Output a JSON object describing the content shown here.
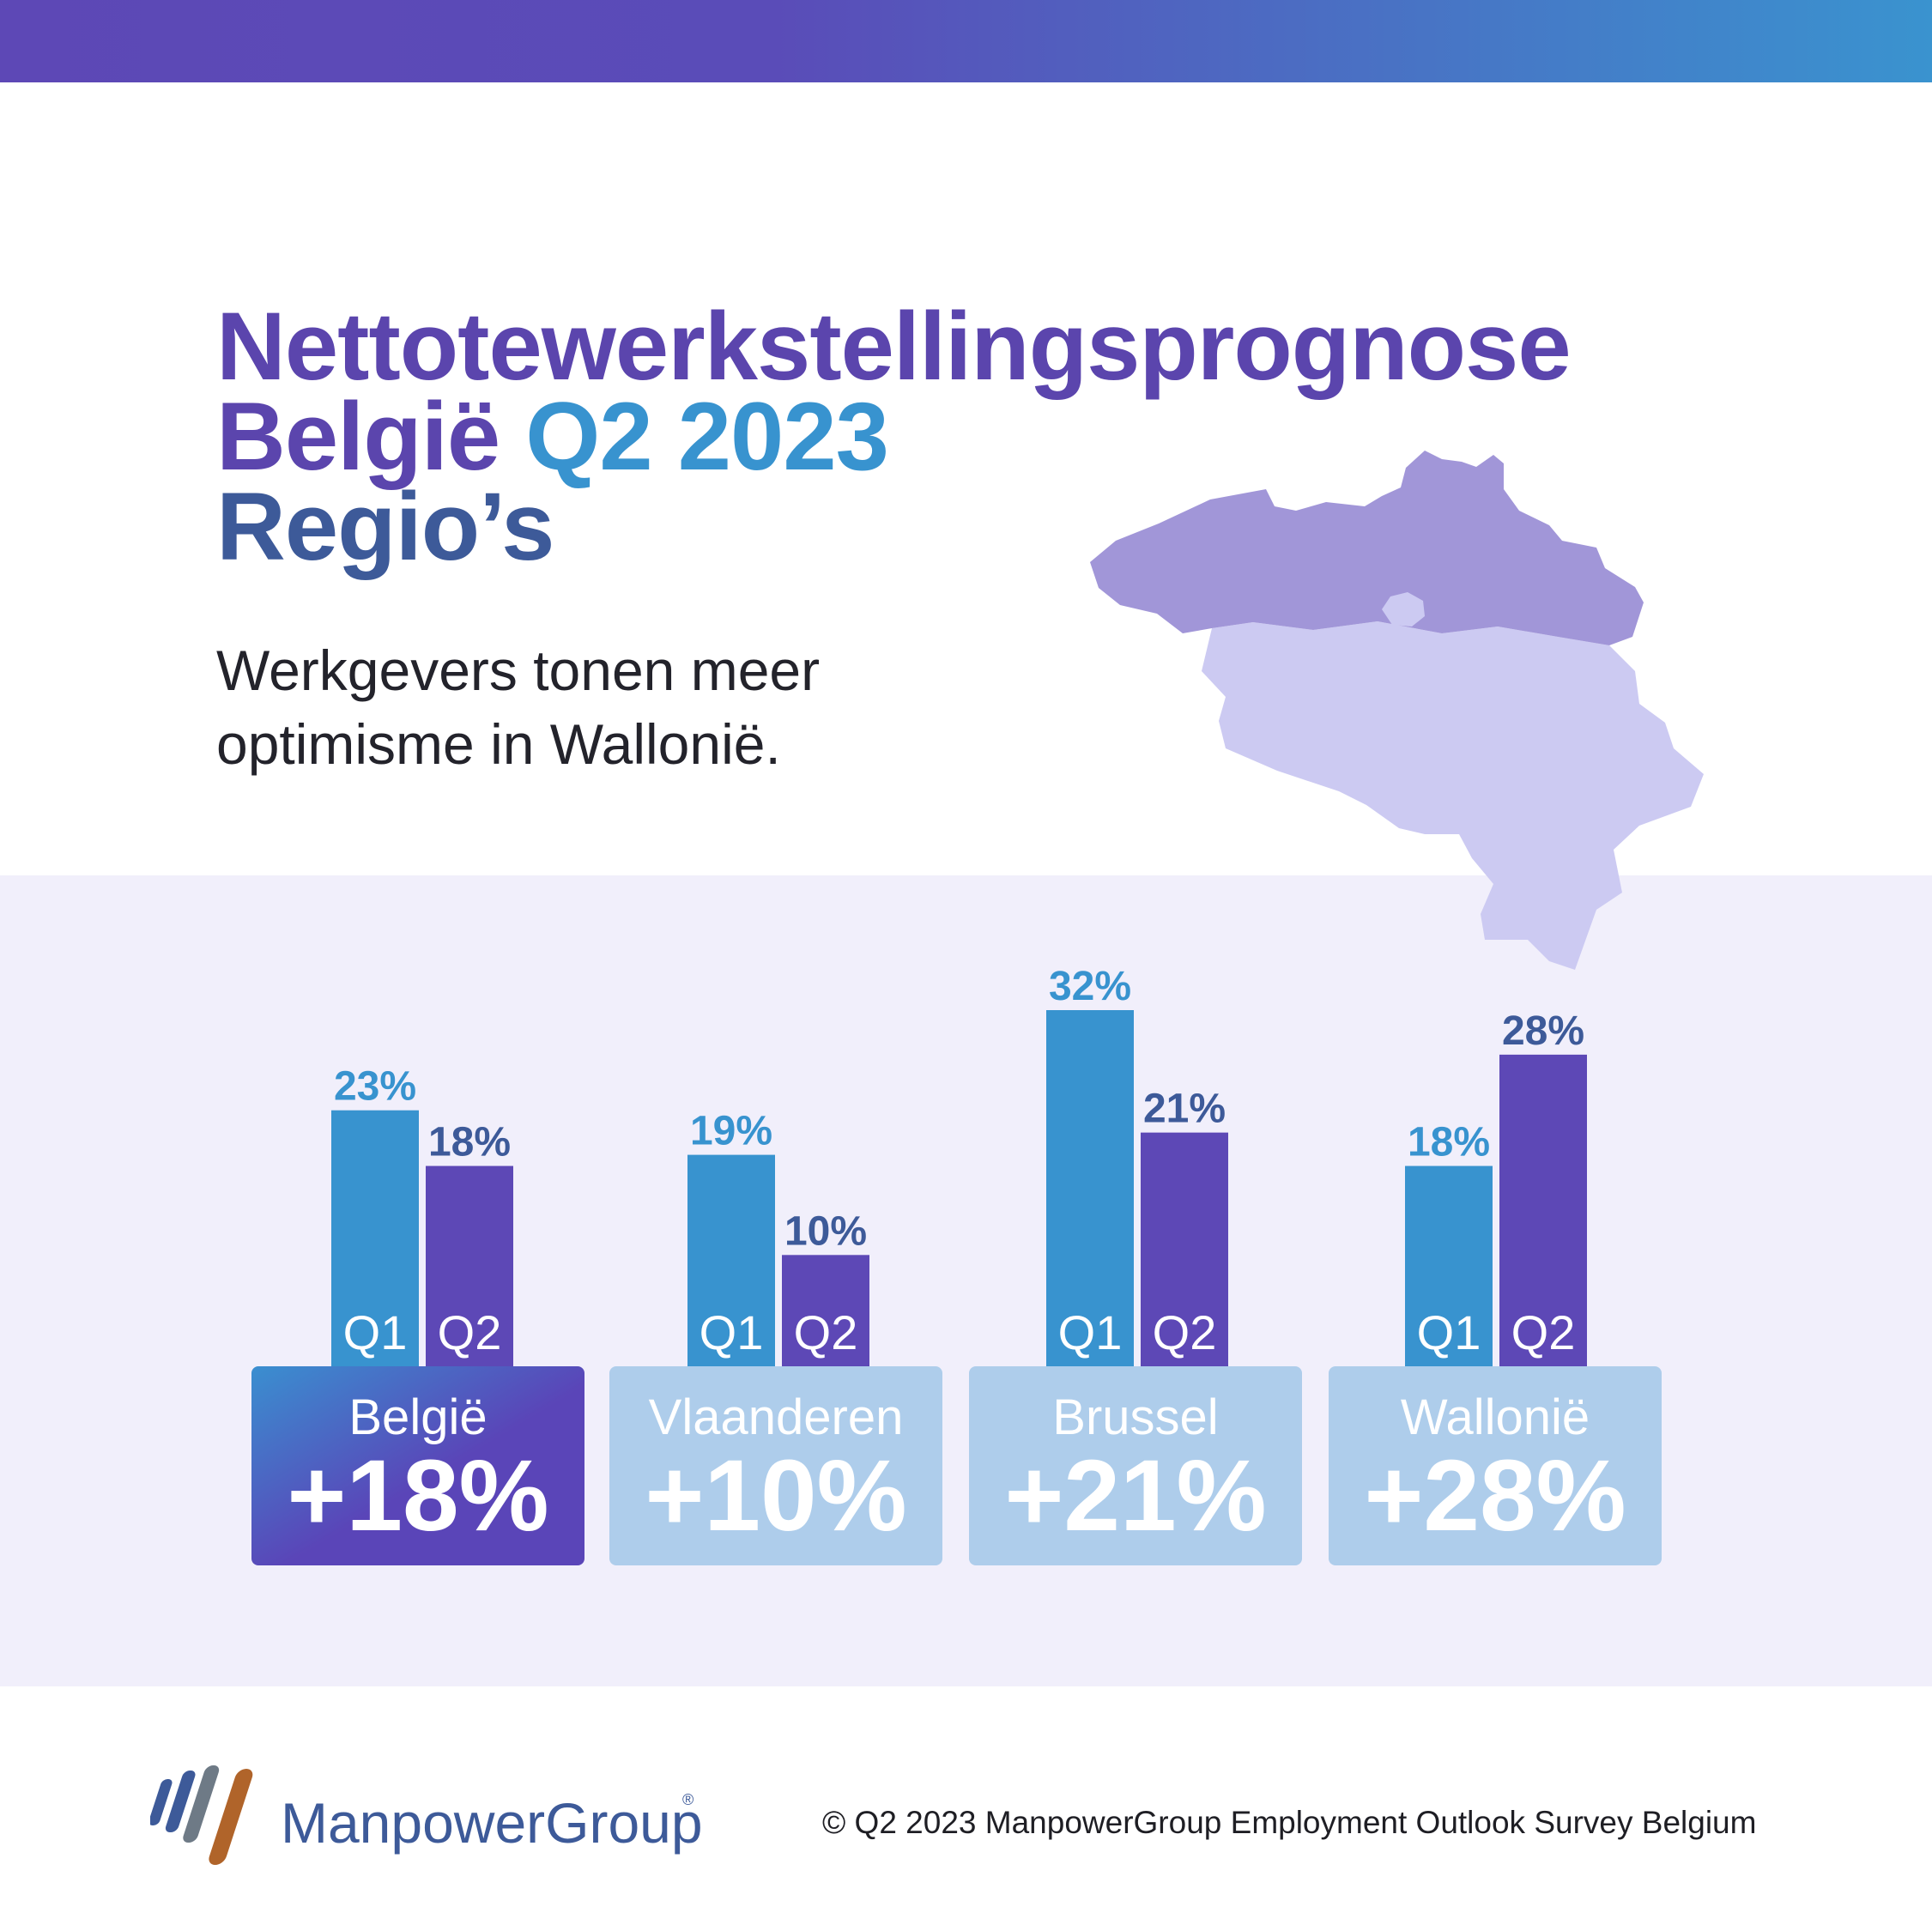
{
  "headline": {
    "line1": "Nettotewerkstellingsprognose",
    "line2a": "België",
    "line2b": "Q2 2023",
    "line3": "Regio’s"
  },
  "subtitle": {
    "line1": "Werkgevers tonen meer",
    "line2": "optimisme in Wallonië."
  },
  "chart_data": {
    "type": "bar",
    "categories": [
      "België",
      "Vlaanderen",
      "Brussel",
      "Wallonië"
    ],
    "series": [
      {
        "name": "Q1",
        "values": [
          23,
          19,
          32,
          18
        ]
      },
      {
        "name": "Q2",
        "values": [
          18,
          10,
          21,
          28
        ]
      }
    ],
    "data_labels": {
      "Q1": [
        "23%",
        "19%",
        "32%",
        "18%"
      ],
      "Q2": [
        "18%",
        "10%",
        "21%",
        "28%"
      ]
    },
    "bar_labels": [
      "Q1",
      "Q2"
    ],
    "totals": [
      "+18%",
      "+10%",
      "+21%",
      "+28%"
    ],
    "highlight_category": "België",
    "colors": {
      "Q1": "#3893cf",
      "Q2": "#5d48b6",
      "label_q1": "#3893cf",
      "label_q2": "#3d5a99",
      "box": "#aecdeb",
      "box_highlight_start": "#3a8fd0",
      "box_highlight_end": "#5a45b8"
    },
    "ylim": [
      0,
      32
    ]
  },
  "map": {
    "north_color": "#a196d8",
    "south_color": "#cccaf2",
    "brussels_color": "#cccaf2"
  },
  "brand": {
    "name": "ManpowerGroup",
    "mark": "®"
  },
  "footer": {
    "copyright": "© Q2 2023 ManpowerGroup Employment Outlook Survey Belgium"
  }
}
